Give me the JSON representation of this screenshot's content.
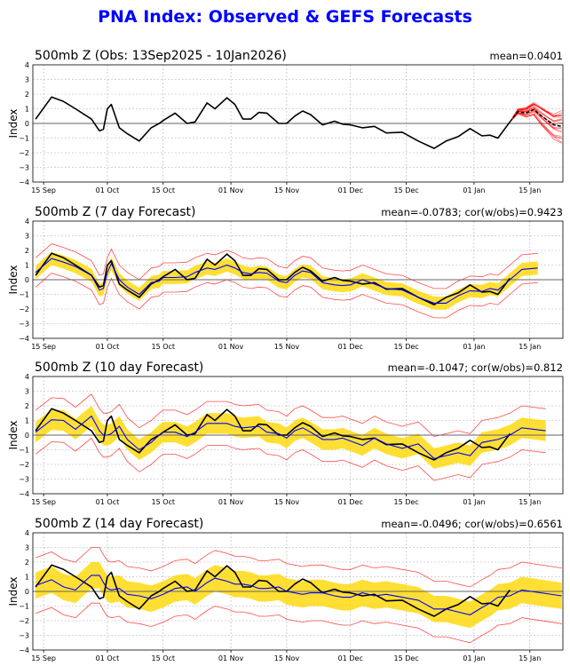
{
  "title": "PNA Index: Observed & GEFS Forecasts",
  "chart_data": {
    "type": "line",
    "x_unit": "days since 13 Sep 2025",
    "xlim": [
      -0.7,
      132.3
    ],
    "ylim": [
      -4,
      4
    ],
    "yticks": [
      -4,
      -3,
      -2,
      -1,
      0,
      1,
      2,
      3,
      4
    ],
    "xticks": [
      {
        "day": 2,
        "label": "15 Sep"
      },
      {
        "day": 18,
        "label": "01 Oct"
      },
      {
        "day": 32,
        "label": "15 Oct"
      },
      {
        "day": 49,
        "label": "01 Nov"
      },
      {
        "day": 63,
        "label": "15 Nov"
      },
      {
        "day": 79,
        "label": "01 Dec"
      },
      {
        "day": 93,
        "label": "15 Dec"
      },
      {
        "day": 110,
        "label": "01 Jan"
      },
      {
        "day": 124,
        "label": "15 Jan"
      }
    ],
    "ylabel": "Index",
    "grid": true,
    "days": [
      0,
      4,
      7,
      10,
      14,
      16,
      17,
      18,
      19,
      21,
      23,
      26,
      29,
      31,
      32,
      35,
      38,
      40,
      43,
      45,
      48,
      50,
      52,
      54,
      56,
      58,
      61,
      63,
      65,
      67,
      69,
      72,
      75,
      77,
      79,
      82,
      85,
      88,
      92,
      96,
      100,
      103,
      106,
      109,
      112,
      114,
      116,
      119
    ],
    "observed": [
      0.3,
      1.8,
      1.5,
      1.0,
      0.3,
      -0.5,
      -0.4,
      1.0,
      1.3,
      -0.3,
      -0.7,
      -1.2,
      -0.3,
      0.0,
      0.2,
      0.7,
      0.0,
      0.1,
      1.4,
      1.0,
      1.75,
      1.3,
      0.3,
      0.3,
      0.75,
      0.7,
      0.0,
      0.0,
      0.5,
      0.85,
      0.6,
      -0.1,
      0.15,
      -0.05,
      -0.1,
      -0.3,
      -0.2,
      -0.65,
      -0.6,
      -1.2,
      -1.7,
      -1.2,
      -0.9,
      -0.35,
      -0.85,
      -0.8,
      -1.0,
      0.1
    ],
    "panels": [
      {
        "title": "500mb Z (Obs: 13Sep2025 - 10Jan2026)",
        "stats": "mean=0.0401",
        "ensemble": {
          "days": [
            119,
            121,
            123,
            125,
            127,
            130,
            132
          ],
          "mean": [
            0.1,
            0.8,
            0.7,
            0.95,
            0.5,
            -0.1,
            -0.2
          ],
          "spread": [
            0,
            0.15,
            0.3,
            0.4,
            0.6,
            0.8,
            1.0
          ],
          "members": 20
        }
      },
      {
        "title": "500mb Z (7 day Forecast)",
        "stats": "mean=-0.0783; cor(w/obs)=0.9423",
        "extra_days": [
          122,
          126
        ],
        "forecast_mean": [
          0.5,
          1.45,
          1.2,
          0.9,
          0.3,
          -0.7,
          -0.6,
          0.5,
          1.1,
          0.0,
          -0.5,
          -1.0,
          -0.2,
          -0.1,
          0.15,
          0.15,
          0.2,
          0.5,
          0.8,
          0.7,
          1.0,
          0.8,
          0.5,
          0.4,
          0.5,
          0.45,
          -0.1,
          -0.2,
          0.3,
          0.6,
          0.5,
          -0.2,
          -0.35,
          -0.4,
          -0.35,
          0.0,
          -0.3,
          -0.6,
          -0.7,
          -1.2,
          -1.6,
          -1.6,
          -1.1,
          -0.75,
          -0.8,
          -0.6,
          -0.7,
          0.0,
          0.7,
          0.8
        ],
        "band_halfwidth": 0.45,
        "range_halfwidth": 1.0
      },
      {
        "title": "500mb Z (10 day Forecast)",
        "stats": "mean=-0.1047; cor(w/obs)=0.812",
        "extra_days": [
          122,
          128
        ],
        "forecast_mean": [
          0.2,
          1.05,
          1.0,
          0.4,
          1.3,
          0.3,
          0.0,
          0.0,
          0.1,
          0.6,
          -0.3,
          -1.0,
          -0.5,
          0.0,
          0.2,
          0.2,
          -0.1,
          0.2,
          0.8,
          0.8,
          0.8,
          0.6,
          0.5,
          0.55,
          0.6,
          0.2,
          0.1,
          -0.2,
          0.3,
          0.5,
          0.2,
          -0.3,
          -0.3,
          -0.2,
          -0.4,
          -0.7,
          -0.2,
          -0.6,
          -0.9,
          -0.6,
          -1.6,
          -1.4,
          -1.2,
          -1.4,
          -0.5,
          -0.4,
          -0.3,
          0.0,
          0.5,
          0.3
        ],
        "band_halfwidth": 0.7,
        "range_halfwidth": 1.5
      },
      {
        "title": "500mb Z (14 day Forecast)",
        "stats": "mean=-0.0496; cor(w/obs)=0.6561",
        "extra_days": [
          122,
          132
        ],
        "forecast_mean": [
          0.4,
          0.8,
          0.3,
          0.1,
          1.1,
          1.1,
          0.6,
          0.2,
          0.1,
          0.2,
          -0.2,
          -0.3,
          -0.5,
          -0.3,
          -0.2,
          0.2,
          0.3,
          0.0,
          0.6,
          0.9,
          0.7,
          0.5,
          0.5,
          0.4,
          0.2,
          0.2,
          0.3,
          0.0,
          -0.1,
          -0.2,
          -0.1,
          -0.1,
          -0.3,
          -0.4,
          -0.4,
          -0.1,
          -0.3,
          -0.2,
          -0.4,
          -0.6,
          -1.2,
          -1.2,
          -1.4,
          -1.6,
          -1.1,
          -0.8,
          -0.4,
          -0.3,
          0.1,
          -0.3
        ],
        "band_halfwidth": 0.9,
        "range_halfwidth": 1.9
      }
    ],
    "colors": {
      "observed": "#000000",
      "forecast_mean": "#0000ff",
      "band": "#ffd700",
      "range": "#ff0000",
      "members": "#ff0000"
    }
  }
}
